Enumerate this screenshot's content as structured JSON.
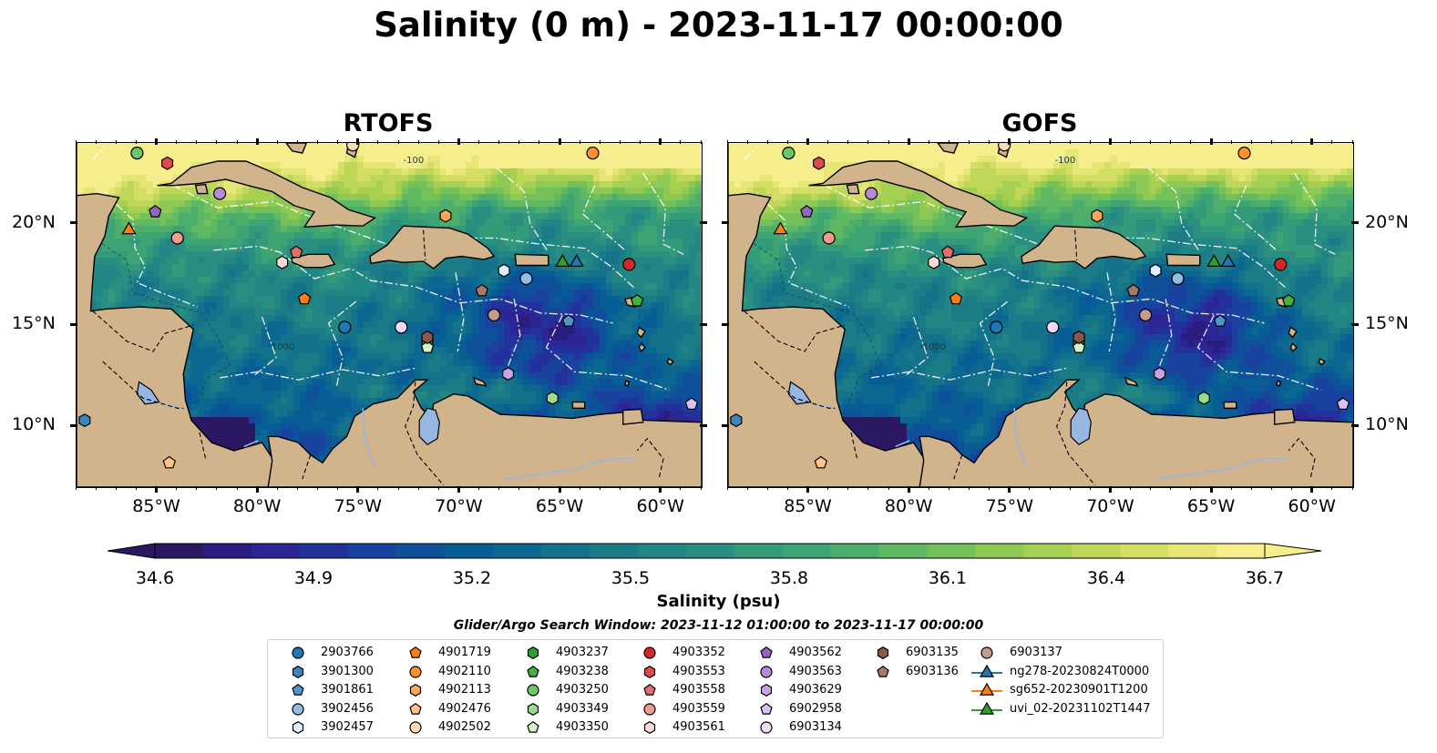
{
  "title": "Salinity (0 m) - 2023-11-17 00:00:00",
  "panels": [
    {
      "title": "RTOFS"
    },
    {
      "title": "GOFS"
    }
  ],
  "map": {
    "lat_ticks": [
      "20°N",
      "15°N",
      "10°N"
    ],
    "lon_ticks": [
      "85°W",
      "80°W",
      "75°W",
      "70°W",
      "65°W",
      "60°W"
    ],
    "extent_lon": [
      -89,
      -58
    ],
    "extent_lat": [
      7,
      24
    ],
    "land_color": "#d2b48c",
    "lake_color": "#97b6e1",
    "contour_labels": [
      "-100",
      "-1000"
    ]
  },
  "colorbar": {
    "label": "Salinity (psu)",
    "ticks": [
      "34.6",
      "34.9",
      "35.2",
      "35.5",
      "35.8",
      "36.1",
      "36.4",
      "36.7"
    ],
    "vmin": 34.6,
    "vmax": 36.7,
    "colormap": "haline",
    "extend": "both",
    "colors": [
      "#2a1863",
      "#2b1d80",
      "#2c2596",
      "#23319c",
      "#18429e",
      "#0e519a",
      "#095d95",
      "#0c6890",
      "#14728b",
      "#1b7c88",
      "#228684",
      "#2a8f80",
      "#339a7a",
      "#3ea473",
      "#4dae6b",
      "#5fb862",
      "#75c159",
      "#8dc953",
      "#a6d052",
      "#bed758",
      "#d4de65",
      "#e6e676",
      "#f6ee8c"
    ]
  },
  "search_window": "Glider/Argo Search Window: 2023-11-12 01:00:00 to 2023-11-17 00:00:00",
  "legend": [
    {
      "label": "2903766",
      "marker": "circle",
      "color": "#1f77b4"
    },
    {
      "label": "3901300",
      "marker": "hexagon",
      "color": "#3a87bd"
    },
    {
      "label": "3901861",
      "marker": "pentagon",
      "color": "#4f95c8"
    },
    {
      "label": "3902456",
      "marker": "circle",
      "color": "#8fbfe3"
    },
    {
      "label": "3902457",
      "marker": "hexagon",
      "color": "#ddeeff"
    },
    {
      "label": "4901719",
      "marker": "pentagon",
      "color": "#ff7f0e"
    },
    {
      "label": "4902110",
      "marker": "circle",
      "color": "#ff922e"
    },
    {
      "label": "4902113",
      "marker": "hexagon",
      "color": "#ffa756"
    },
    {
      "label": "4902476",
      "marker": "pentagon",
      "color": "#ffc488"
    },
    {
      "label": "4902502",
      "marker": "circle",
      "color": "#ffdcb8"
    },
    {
      "label": "4903237",
      "marker": "hexagon",
      "color": "#2ca02c"
    },
    {
      "label": "4903238",
      "marker": "pentagon",
      "color": "#3fb23f"
    },
    {
      "label": "4903250",
      "marker": "circle",
      "color": "#6cc66c"
    },
    {
      "label": "4903349",
      "marker": "hexagon",
      "color": "#98dc8e"
    },
    {
      "label": "4903350",
      "marker": "pentagon",
      "color": "#d4f5c8"
    },
    {
      "label": "4903352",
      "marker": "circle",
      "color": "#d62728"
    },
    {
      "label": "4903553",
      "marker": "hexagon",
      "color": "#e04a4a"
    },
    {
      "label": "4903558",
      "marker": "pentagon",
      "color": "#e86a6a"
    },
    {
      "label": "4903559",
      "marker": "circle",
      "color": "#f19a8e"
    },
    {
      "label": "4903561",
      "marker": "hexagon",
      "color": "#fadbd5"
    },
    {
      "label": "4903562",
      "marker": "pentagon",
      "color": "#9467bd"
    },
    {
      "label": "4903563",
      "marker": "circle",
      "color": "#b48bd6"
    },
    {
      "label": "4903629",
      "marker": "hexagon",
      "color": "#c8a2e6"
    },
    {
      "label": "6902958",
      "marker": "pentagon",
      "color": "#dcc0f0"
    },
    {
      "label": "6903134",
      "marker": "circle",
      "color": "#f0dcf8"
    },
    {
      "label": "6903135",
      "marker": "hexagon",
      "color": "#8c564b"
    },
    {
      "label": "6903136",
      "marker": "pentagon",
      "color": "#a7786c"
    },
    {
      "label": "6903137",
      "marker": "circle",
      "color": "#c49c8c"
    },
    {
      "label": "ng278-20230824T0000",
      "marker": "triangle-line",
      "color": "#1f77b4"
    },
    {
      "label": "sg652-20230901T1200",
      "marker": "triangle-line",
      "color": "#ff7f0e"
    },
    {
      "label": "uvi_02-20231102T1447",
      "marker": "triangle-line",
      "color": "#2ca02c"
    }
  ],
  "observations": [
    {
      "id": "2903766",
      "lon": -75.7,
      "lat": 14.9
    },
    {
      "id": "3901300",
      "lon": -88.6,
      "lat": 10.3
    },
    {
      "id": "3901861",
      "lon": -64.6,
      "lat": 15.2
    },
    {
      "id": "3902456",
      "lon": -66.7,
      "lat": 17.3
    },
    {
      "id": "3902457",
      "lon": -67.8,
      "lat": 17.7
    },
    {
      "id": "4901719",
      "lon": -77.7,
      "lat": 16.3
    },
    {
      "id": "4902110",
      "lon": -63.4,
      "lat": 23.5
    },
    {
      "id": "4902113",
      "lon": -70.7,
      "lat": 20.4
    },
    {
      "id": "4902476",
      "lon": -84.4,
      "lat": 8.2
    },
    {
      "id": "4902502",
      "lon": -75.3,
      "lat": 23.9
    },
    {
      "id": "4903237",
      "lon": -71.6,
      "lat": 14.1
    },
    {
      "id": "4903238",
      "lon": -61.2,
      "lat": 16.2
    },
    {
      "id": "4903250",
      "lon": -86.0,
      "lat": 23.5
    },
    {
      "id": "4903349",
      "lon": -65.4,
      "lat": 11.4
    },
    {
      "id": "4903350",
      "lon": -71.6,
      "lat": 13.9
    },
    {
      "id": "4903352",
      "lon": -61.6,
      "lat": 18.0
    },
    {
      "id": "4903553",
      "lon": -84.5,
      "lat": 23.0
    },
    {
      "id": "4903558",
      "lon": -78.1,
      "lat": 18.6
    },
    {
      "id": "4903559",
      "lon": -84.0,
      "lat": 19.3
    },
    {
      "id": "4903561",
      "lon": -78.8,
      "lat": 18.1
    },
    {
      "id": "4903562",
      "lon": -85.1,
      "lat": 20.6
    },
    {
      "id": "4903563",
      "lon": -81.9,
      "lat": 21.5
    },
    {
      "id": "4903629",
      "lon": -67.6,
      "lat": 12.6
    },
    {
      "id": "6902958",
      "lon": -58.5,
      "lat": 11.1
    },
    {
      "id": "6903134",
      "lon": -72.9,
      "lat": 14.9
    },
    {
      "id": "6903135",
      "lon": -71.6,
      "lat": 14.4
    },
    {
      "id": "6903136",
      "lon": -68.9,
      "lat": 16.7
    },
    {
      "id": "6903137",
      "lon": -68.3,
      "lat": 15.5
    },
    {
      "id": "ng278-20230824T0000",
      "lon": -64.2,
      "lat": 18.1
    },
    {
      "id": "sg652-20230901T1200",
      "lon": -86.4,
      "lat": 19.7
    },
    {
      "id": "uvi_02-20231102T1447",
      "lon": -64.9,
      "lat": 18.1
    }
  ]
}
